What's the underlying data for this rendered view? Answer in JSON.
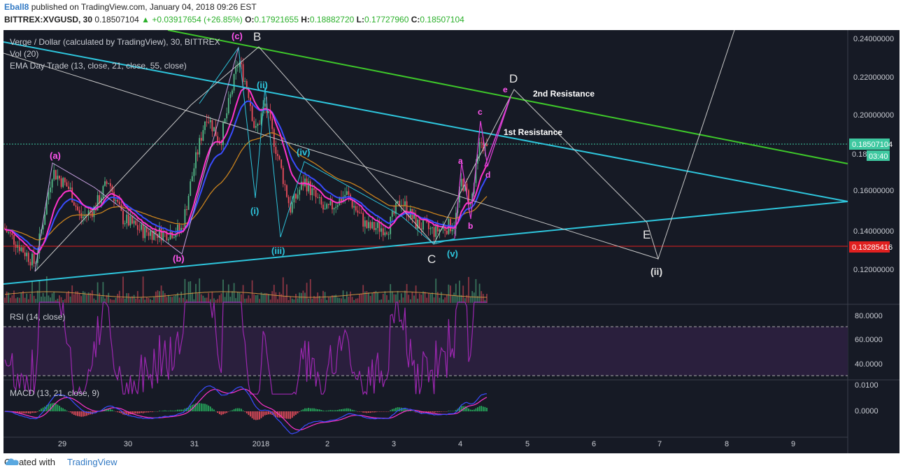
{
  "header": {
    "user": "Eball8",
    "published": "published on TradingView.com, January 04, 2018 09:26 EST",
    "symbol": "BITTREX:XVGUSD, 30",
    "price": "0.18507104",
    "change": "+0.03917654 (+26.85%)",
    "o_label": "O:",
    "o_val": "0.17921655",
    "h_label": "H:",
    "h_val": "0.18882720",
    "l_label": "L:",
    "l_val": "0.17727960",
    "c_label": "C:",
    "c_val": "0.18507104"
  },
  "legend": {
    "title": "Verge / Dollar (calculated by TradingView), 30, BITTREX",
    "vol": "Vol (20)",
    "ema": "EMA Day Trade (13, close, 21, close, 55, close)",
    "rsi": "RSI (14, close)",
    "macd": "MACD (13, 21, close, 9)"
  },
  "price_axis": {
    "ticks": [
      "0.24000000",
      "0.22000000",
      "0.20000000",
      "0.18000000",
      "0.16000000",
      "0.14000000",
      "0.12000000"
    ],
    "current_price": "0.18507104",
    "current_small": "0.180",
    "countdown": "03:40",
    "support_price": "0.13285416"
  },
  "rsi_axis": {
    "ticks": [
      "80.0000",
      "60.0000",
      "40.0000"
    ]
  },
  "macd_axis": {
    "ticks": [
      "0.0100",
      "0.0000"
    ]
  },
  "time_axis": {
    "ticks": [
      "29",
      "30",
      "31",
      "2018",
      "2",
      "3",
      "4",
      "5",
      "6",
      "7",
      "8",
      "9"
    ]
  },
  "annotations": {
    "a_paren": "(a)",
    "b_paren": "(b)",
    "c_paren": "(c)",
    "B": "B",
    "C": "C",
    "D": "D",
    "E": "E",
    "i": "(i)",
    "ii": "(ii)",
    "iii": "(iii)",
    "iv": "(iv)",
    "v": "(v)",
    "ii_future": "(ii)",
    "a": "a",
    "b": "b",
    "c": "c",
    "d": "d",
    "e": "e",
    "second_resistance": "2nd Resistance",
    "first_resistance": "1st Resistance"
  },
  "colors": {
    "background": "#161a25",
    "cyan": "#2ec5dc",
    "green": "#3ec82a",
    "white_line": "#c7c7c7",
    "magenta": "#e040d8",
    "ema13": "#ff33cc",
    "ema21": "#3a4cff",
    "ema55": "#c8821e",
    "up_candle": "#53b987",
    "down_candle": "#eb4d5c",
    "support": "#e02020",
    "rsi": "#9c27b0",
    "macd": "#3a4cff",
    "signal": "#ff33cc"
  },
  "chart_data": {
    "type": "candlestick",
    "symbol": "BITTREX:XVGUSD",
    "interval": "30",
    "x_labels": [
      "29",
      "30",
      "31",
      "2018",
      "2",
      "3",
      "4",
      "5",
      "6",
      "7",
      "8",
      "9"
    ],
    "ylim": [
      0.1,
      0.245
    ],
    "last": {
      "open": 0.17921655,
      "high": 0.1888272,
      "low": 0.1772796,
      "close": 0.18507104
    },
    "support_level": 0.13285416,
    "pivots": [
      {
        "label": "(a)",
        "date": "Dec 28 21:00",
        "price": 0.175
      },
      {
        "label": "(b)",
        "date": "Dec 30 15:00",
        "price": 0.128
      },
      {
        "label": "(c)",
        "date": "Dec 31 16:00",
        "price": 0.236
      },
      {
        "label": "(i)",
        "date": "Jan 1 02:00",
        "price": 0.157
      },
      {
        "label": "(ii)",
        "date": "Jan 1 06:00",
        "price": 0.21
      },
      {
        "label": "(iii)",
        "date": "Jan 1 07:00",
        "price": 0.137
      },
      {
        "label": "(iv)",
        "date": "Jan 1 15:00",
        "price": 0.175
      },
      {
        "label": "C",
        "date": "Jan 3 14:00",
        "price": 0.133
      },
      {
        "label": "(v)",
        "date": "Jan 3 22:00",
        "price": 0.135
      },
      {
        "label": "a",
        "date": "Jan 4 00:00",
        "price": 0.168
      },
      {
        "label": "b",
        "date": "Jan 4 05:00",
        "price": 0.15
      },
      {
        "label": "c",
        "date": "Jan 4 07:00",
        "price": 0.194
      },
      {
        "label": "d",
        "date": "Jan 4 09:00",
        "price": 0.177
      }
    ],
    "projection": [
      {
        "label": "e",
        "date": "Jan 4 16:00",
        "price": 0.212
      },
      {
        "label": "D",
        "date": "Jan 4 20:00",
        "price": 0.213
      },
      {
        "label": "E",
        "date": "Jan 6 19:00",
        "price": 0.145
      },
      {
        "label": "(ii)",
        "date": "Jan 6 23:00",
        "price": 0.126
      }
    ],
    "rsi": {
      "upper": 70,
      "lower": 30,
      "last": 68
    },
    "macd": {
      "last": 0.0045
    }
  }
}
